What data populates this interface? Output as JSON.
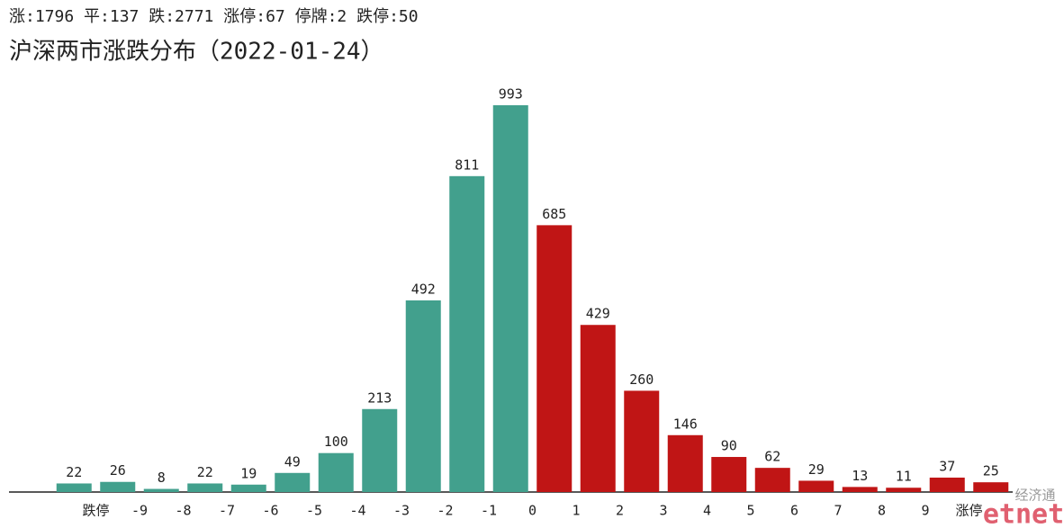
{
  "chart_data": {
    "type": "bar",
    "subtitle": "涨:1796 平:137 跌:2771 涨停:67 停牌:2 跌停:50",
    "title": "沪深两市涨跌分布（2022-01-24）",
    "values": [
      22,
      26,
      8,
      22,
      19,
      49,
      100,
      213,
      492,
      811,
      993,
      685,
      429,
      260,
      146,
      90,
      62,
      29,
      13,
      11,
      37,
      25
    ],
    "colors": [
      "#42a08d",
      "#42a08d",
      "#42a08d",
      "#42a08d",
      "#42a08d",
      "#42a08d",
      "#42a08d",
      "#42a08d",
      "#42a08d",
      "#42a08d",
      "#42a08d",
      "#c01515",
      "#c01515",
      "#c01515",
      "#c01515",
      "#c01515",
      "#c01515",
      "#c01515",
      "#c01515",
      "#c01515",
      "#c01515",
      "#c01515"
    ],
    "xticks": [
      "跌停",
      "-9",
      "-8",
      "-7",
      "-6",
      "-5",
      "-4",
      "-3",
      "-2",
      "-1",
      "0",
      "1",
      "2",
      "3",
      "4",
      "5",
      "6",
      "7",
      "8",
      "9",
      "涨停"
    ],
    "watermark": {
      "cn": "经济通",
      "en": "etnet"
    }
  }
}
